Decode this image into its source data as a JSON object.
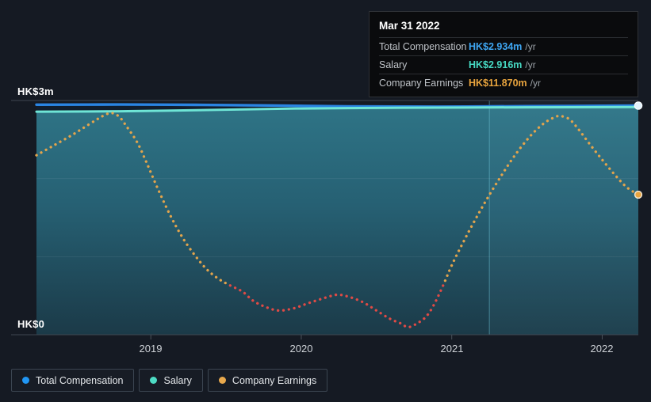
{
  "tooltip": {
    "date": "Mar 31 2022",
    "rows": [
      {
        "label": "Total Compensation",
        "value": "HK$2.934m",
        "suffix": "/yr",
        "color": "#3ea6f2"
      },
      {
        "label": "Salary",
        "value": "HK$2.916m",
        "suffix": "/yr",
        "color": "#46d8c2"
      },
      {
        "label": "Company Earnings",
        "value": "HK$11.870m",
        "suffix": "/yr",
        "color": "#e8a43e"
      }
    ]
  },
  "legend": {
    "items": [
      {
        "label": "Total Compensation",
        "color": "#2196f3"
      },
      {
        "label": "Salary",
        "color": "#4ddcc4"
      },
      {
        "label": "Company Earnings",
        "color": "#e8a94d"
      }
    ]
  },
  "chart_data": {
    "type": "line",
    "x_axis": {
      "labels": [
        "2019",
        "2020",
        "2021",
        "2022"
      ],
      "ticks": [
        2019,
        2020,
        2021,
        2022
      ],
      "range": [
        2018.24,
        2022.24
      ]
    },
    "y_axis": {
      "label_top": "HK$3m",
      "label_bottom": "HK$0",
      "range": [
        0,
        3
      ],
      "gridlines": [
        0,
        1,
        2,
        3
      ]
    },
    "earnings_axis": {
      "hidden": true,
      "range": [
        -6.71,
        24.36
      ],
      "unit": "HK$m"
    },
    "highlight_band": {
      "from": 2021.25,
      "to": 2022.24
    },
    "series": [
      {
        "name": "Total Compensation",
        "style": "line",
        "axis": "compensation",
        "color": "#2a84e2",
        "fill": "#111e2e",
        "points": [
          [
            2018.24,
            2.946
          ],
          [
            2018.8,
            2.948
          ],
          [
            2019.3,
            2.944
          ],
          [
            2019.8,
            2.936
          ],
          [
            2020.3,
            2.925
          ],
          [
            2020.9,
            2.921
          ],
          [
            2021.5,
            2.927
          ],
          [
            2022.24,
            2.934
          ]
        ]
      },
      {
        "name": "Salary",
        "style": "line",
        "axis": "compensation",
        "color": "#6fe5d6",
        "fill_top": "#2f7587",
        "fill_mid": "#266073",
        "fill_bottom": "#1b3a48",
        "points": [
          [
            2018.24,
            2.857
          ],
          [
            2018.8,
            2.862
          ],
          [
            2019.3,
            2.875
          ],
          [
            2019.8,
            2.893
          ],
          [
            2020.3,
            2.903
          ],
          [
            2020.9,
            2.909
          ],
          [
            2021.5,
            2.913
          ],
          [
            2022.24,
            2.916
          ]
        ]
      },
      {
        "name": "Company Earnings",
        "style": "dotted",
        "axis": "earnings",
        "color_positive": "#e2a44c",
        "color_negative": "#e04a45",
        "points": [
          [
            2018.24,
            17.1
          ],
          [
            2018.32,
            18.0
          ],
          [
            2018.39,
            18.8
          ],
          [
            2018.47,
            19.7
          ],
          [
            2018.55,
            20.7
          ],
          [
            2018.63,
            21.7
          ],
          [
            2018.69,
            22.4
          ],
          [
            2018.74,
            22.7
          ],
          [
            2018.79,
            22.2
          ],
          [
            2018.84,
            20.9
          ],
          [
            2018.91,
            18.8
          ],
          [
            2018.97,
            16.2
          ],
          [
            2019.05,
            12.5
          ],
          [
            2019.13,
            9.1
          ],
          [
            2019.21,
            6.2
          ],
          [
            2019.29,
            3.9
          ],
          [
            2019.37,
            2.0
          ],
          [
            2019.45,
            0.7
          ],
          [
            2019.53,
            -0.2
          ],
          [
            2019.61,
            -1.0
          ],
          [
            2019.68,
            -2.2
          ],
          [
            2019.76,
            -3.0
          ],
          [
            2019.85,
            -3.5
          ],
          [
            2019.95,
            -3.2
          ],
          [
            2020.05,
            -2.5
          ],
          [
            2020.16,
            -1.8
          ],
          [
            2020.24,
            -1.4
          ],
          [
            2020.32,
            -1.7
          ],
          [
            2020.41,
            -2.4
          ],
          [
            2020.5,
            -3.5
          ],
          [
            2020.59,
            -4.6
          ],
          [
            2020.66,
            -5.2
          ],
          [
            2020.71,
            -5.7
          ],
          [
            2020.77,
            -5.2
          ],
          [
            2020.83,
            -4.3
          ],
          [
            2020.88,
            -2.8
          ],
          [
            2020.94,
            -0.3
          ],
          [
            2021.0,
            2.5
          ],
          [
            2021.08,
            5.7
          ],
          [
            2021.16,
            8.7
          ],
          [
            2021.24,
            11.5
          ],
          [
            2021.33,
            14.4
          ],
          [
            2021.42,
            17.1
          ],
          [
            2021.52,
            19.6
          ],
          [
            2021.61,
            21.3
          ],
          [
            2021.68,
            22.1
          ],
          [
            2021.72,
            22.3
          ],
          [
            2021.78,
            21.9
          ],
          [
            2021.84,
            20.6
          ],
          [
            2021.92,
            18.5
          ],
          [
            2022.0,
            16.5
          ],
          [
            2022.08,
            14.6
          ],
          [
            2022.16,
            12.9
          ],
          [
            2022.24,
            11.87
          ]
        ]
      }
    ],
    "markers": [
      {
        "series": "Total Compensation",
        "x": 2022.24,
        "value": 2.934,
        "fill": "#e3f3fc",
        "stroke": "#ffffff"
      },
      {
        "series": "Company Earnings",
        "x": 2022.24,
        "value": 11.87,
        "fill": "#e9a43f",
        "stroke": "#f4e7d2"
      }
    ],
    "grid_color_major": "#3f4650",
    "grid_color_minor": "rgba(255,255,255,0.07)",
    "band_fill": "rgba(160,230,245,0.045)",
    "band_line": "rgba(110,195,215,0.5)"
  }
}
